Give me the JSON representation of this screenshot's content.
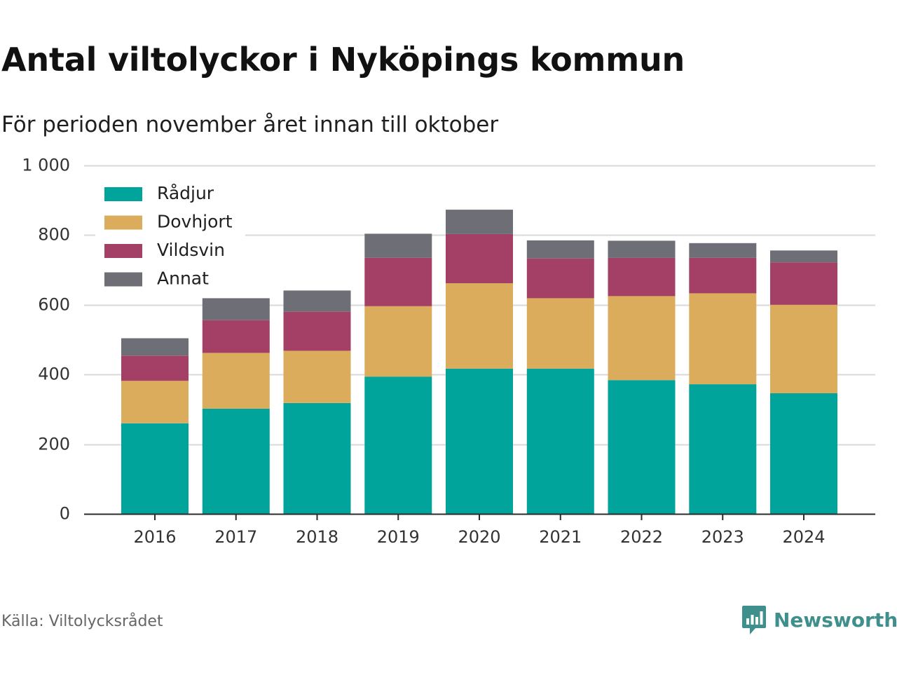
{
  "title": "Antal viltolyckor i Nyköpings kommun",
  "subtitle": "För perioden november året innan till oktober",
  "source": "Källa: Viltolycksrådet",
  "brand": {
    "name": "Newsworthy",
    "color": "#3f8f8c",
    "icon": "newsworthy-chart-icon"
  },
  "chart_data": {
    "type": "bar",
    "stacked": true,
    "categories": [
      "2016",
      "2017",
      "2018",
      "2019",
      "2020",
      "2021",
      "2022",
      "2023",
      "2024"
    ],
    "series": [
      {
        "name": "Rådjur",
        "color": "#00a49a",
        "values": [
          260,
          302,
          318,
          394,
          417,
          417,
          384,
          372,
          346
        ]
      },
      {
        "name": "Dovhjort",
        "color": "#dbac5b",
        "values": [
          122,
          160,
          150,
          202,
          245,
          202,
          241,
          261,
          254
        ]
      },
      {
        "name": "Vildsvin",
        "color": "#a43f65",
        "values": [
          72,
          94,
          112,
          139,
          141,
          114,
          110,
          102,
          122
        ]
      },
      {
        "name": "Annat",
        "color": "#6e6e76",
        "values": [
          50,
          63,
          61,
          69,
          70,
          52,
          49,
          42,
          34
        ]
      }
    ],
    "ylim": [
      0,
      1000
    ],
    "yticks": [
      0,
      200,
      400,
      600,
      800,
      1000
    ],
    "ytick_labels": [
      "0",
      "200",
      "400",
      "600",
      "800",
      "1 000"
    ],
    "grid": true,
    "legend_position": "top-left"
  }
}
